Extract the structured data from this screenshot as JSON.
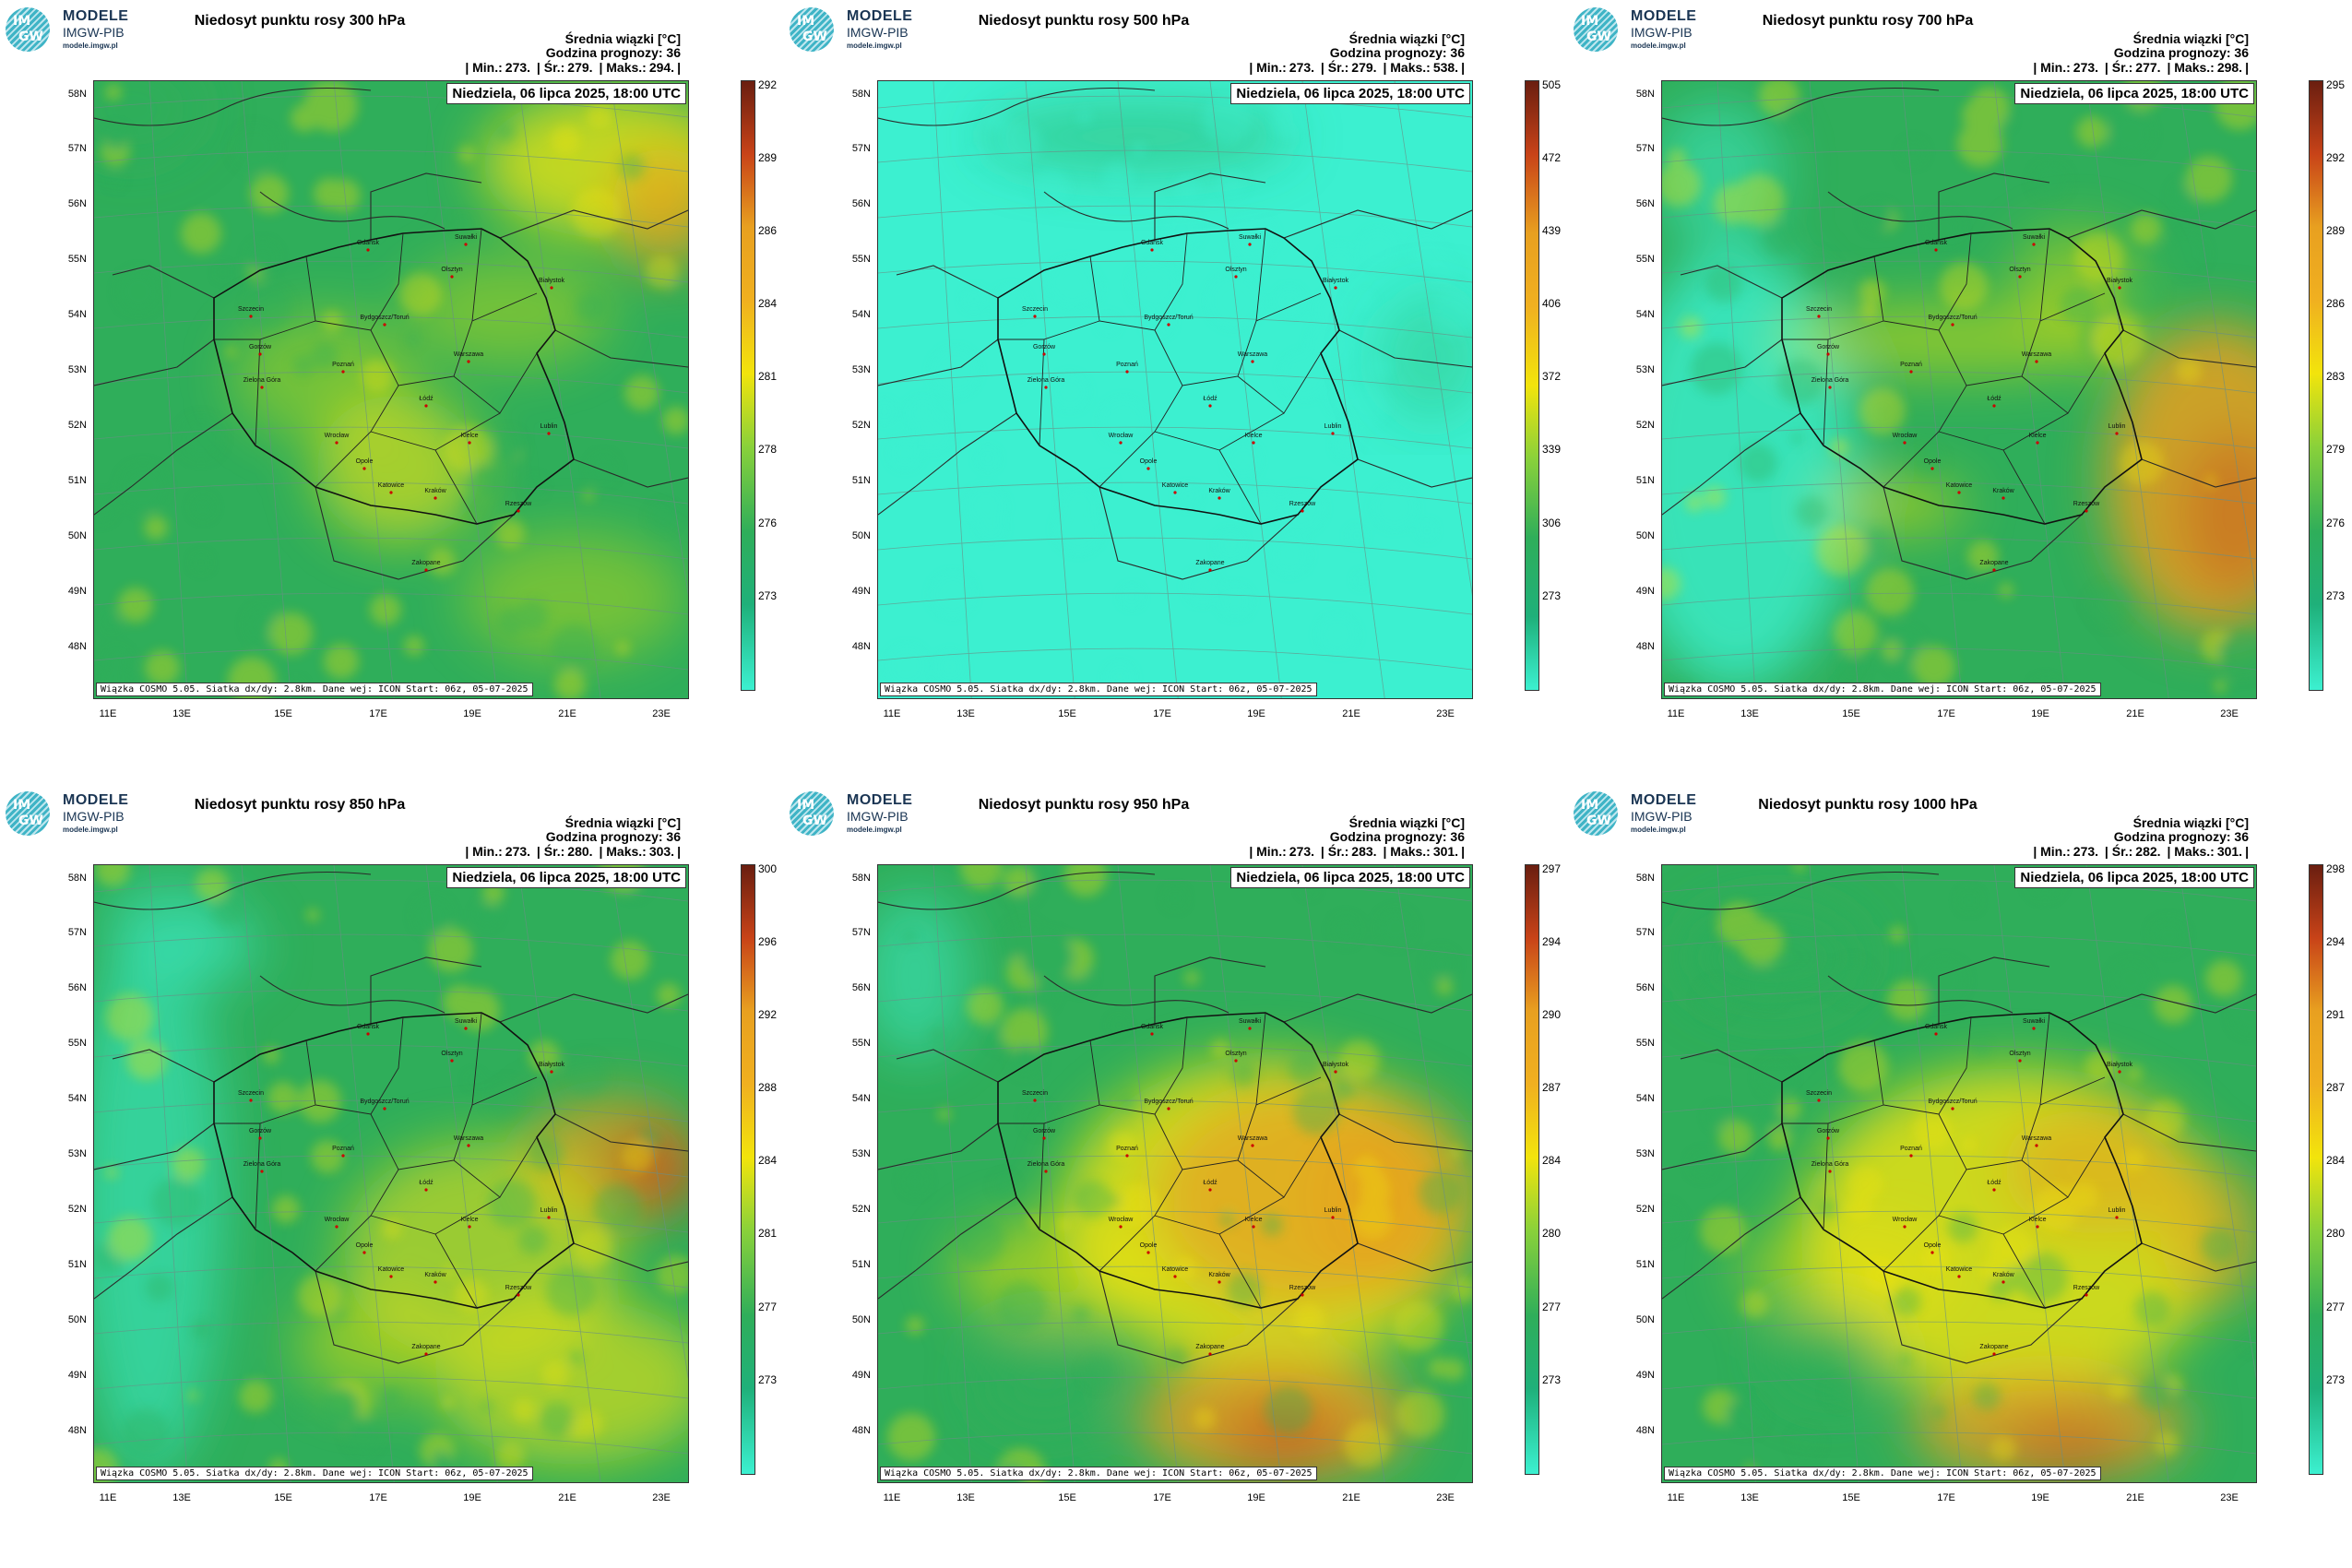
{
  "logo": {
    "mark_top": "IM",
    "mark_bottom": "GW",
    "line1": "MODELE",
    "line2": "IMGW-PIB",
    "line3": "modele.imgw.pl"
  },
  "common": {
    "info_line1": "Średnia wiązki [°C]",
    "info_line2": "Godzina prognozy: 36",
    "min_label": "| Min.:",
    "mean_label": "| Śr.:",
    "max_label": "| Maks.:",
    "date": "Niedziela, 06 lipca 2025, 18:00 UTC",
    "footer": "Wiązka COSMO 5.05. Siatka dx/dy: 2.8km. Dane wej: ICON Start: 06z, 05-07-2025",
    "lat_labels": [
      "58N",
      "57N",
      "56N",
      "55N",
      "54N",
      "53N",
      "52N",
      "51N",
      "50N",
      "49N",
      "48N"
    ],
    "lon_labels": [
      "11E",
      "13E",
      "15E",
      "17E",
      "19E",
      "21E",
      "23E"
    ],
    "cities": [
      "Gdańsk",
      "Suwałki",
      "Olsztyn",
      "Białystok",
      "Szczecin",
      "Bydgoszcz/Toruń",
      "Gorzów",
      "Poznań",
      "Warszawa",
      "Zielona Góra",
      "Łódź",
      "Lublin",
      "Wrocław",
      "Kielce",
      "Opole",
      "Katowice",
      "Kraków",
      "Rzeszów",
      "Zakopane"
    ]
  },
  "panels": [
    {
      "title": "Niedosyt punktu rosy 300 hPa",
      "min": "273.",
      "mean": "279.",
      "max": "294.",
      "scale": [
        "292",
        "289",
        "286",
        "284",
        "281",
        "278",
        "276",
        "273"
      ]
    },
    {
      "title": "Niedosyt punktu rosy 500 hPa",
      "min": "273.",
      "mean": "279.",
      "max": "538.",
      "scale": [
        "505",
        "472",
        "439",
        "406",
        "372",
        "339",
        "306",
        "273"
      ]
    },
    {
      "title": "Niedosyt punktu rosy 700 hPa",
      "min": "273.",
      "mean": "277.",
      "max": "298.",
      "scale": [
        "295",
        "292",
        "289",
        "286",
        "283",
        "279",
        "276",
        "273"
      ]
    },
    {
      "title": "Niedosyt punktu rosy 850 hPa",
      "min": "273.",
      "mean": "280.",
      "max": "303.",
      "scale": [
        "300",
        "296",
        "292",
        "288",
        "284",
        "281",
        "277",
        "273"
      ]
    },
    {
      "title": "Niedosyt punktu rosy 950 hPa",
      "min": "273.",
      "mean": "283.",
      "max": "301.",
      "scale": [
        "297",
        "294",
        "290",
        "287",
        "284",
        "280",
        "277",
        "273"
      ]
    },
    {
      "title": "Niedosyt punktu rosy 1000 hPa",
      "min": "273.",
      "mean": "282.",
      "max": "301.",
      "scale": [
        "298",
        "294",
        "291",
        "287",
        "284",
        "280",
        "277",
        "273"
      ]
    }
  ],
  "colors": {
    "cyan": "#3cf0d0",
    "green": "#2fae5a",
    "yellow": "#f2e40c",
    "orange": "#e8a020",
    "red": "#c84318",
    "brown": "#6a1e10"
  }
}
